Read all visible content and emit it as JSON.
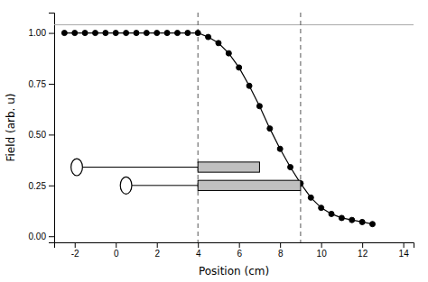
{
  "chart_data": {
    "type": "line",
    "xlabel": "Position (cm)",
    "ylabel": "Field (arb. u)",
    "x": [
      -2.5,
      -2.0,
      -1.5,
      -1.0,
      -0.5,
      0.0,
      0.5,
      1.0,
      1.5,
      2.0,
      2.5,
      3.0,
      3.5,
      4.0,
      4.5,
      5.0,
      5.5,
      6.0,
      6.5,
      7.0,
      7.5,
      8.0,
      8.5,
      9.0,
      9.5,
      10.0,
      10.5,
      11.0,
      11.5,
      12.0,
      12.5
    ],
    "values": [
      1.0,
      1.0,
      1.0,
      1.0,
      1.0,
      1.0,
      1.0,
      1.0,
      1.0,
      1.0,
      1.0,
      1.0,
      1.0,
      1.0,
      0.98,
      0.95,
      0.9,
      0.83,
      0.74,
      0.64,
      0.53,
      0.43,
      0.34,
      0.26,
      0.19,
      0.14,
      0.11,
      0.09,
      0.08,
      0.07,
      0.06
    ],
    "color": "#000000",
    "marker": "circle",
    "xlim": [
      -3,
      14.5
    ],
    "ylim": [
      -0.03,
      1.1
    ],
    "xticks": [
      -2,
      0,
      2,
      4,
      6,
      8,
      10,
      12,
      14
    ],
    "yticks": [
      {
        "value": 0.0,
        "label": "0.00"
      },
      {
        "value": 0.25,
        "label": "0.25"
      },
      {
        "value": 0.5,
        "label": "0.50"
      },
      {
        "value": 0.75,
        "label": "0.75"
      },
      {
        "value": 1.0,
        "label": "1.00"
      }
    ],
    "vlines": [
      4.0,
      9.0
    ],
    "hline": 1.04,
    "ellipses": [
      {
        "cx": -1.9,
        "cy": 0.34,
        "rx": 0.28,
        "ry": 0.042
      },
      {
        "cx": 0.5,
        "cy": 0.25,
        "rx": 0.28,
        "ry": 0.042
      }
    ],
    "rods": [
      {
        "x": [
          -1.62,
          4.0
        ],
        "y": [
          0.34,
          0.34
        ]
      },
      {
        "x": [
          0.78,
          4.0
        ],
        "y": [
          0.25,
          0.25
        ]
      }
    ],
    "rects": [
      {
        "x": 4.0,
        "y": 0.315,
        "width": 3.0,
        "height": 0.05
      },
      {
        "x": 4.0,
        "y": 0.225,
        "width": 5.0,
        "height": 0.05
      }
    ]
  }
}
